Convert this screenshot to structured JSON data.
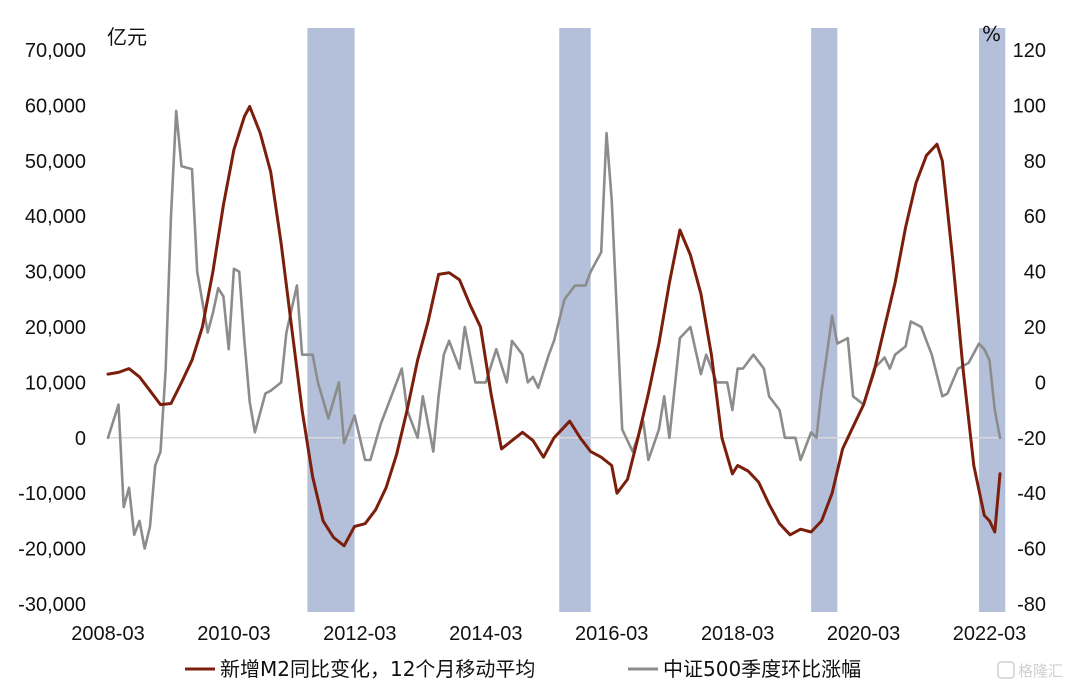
{
  "chart_data": {
    "type": "line",
    "left_unit": "亿元",
    "right_unit": "%",
    "y_left": {
      "min": -30000,
      "max": 70000,
      "ticks": [
        -30000,
        -20000,
        -10000,
        0,
        10000,
        20000,
        30000,
        40000,
        50000,
        60000,
        70000
      ],
      "tick_labels": [
        "-30,000",
        "-20,000",
        "-10,000",
        "0",
        "10,000",
        "20,000",
        "30,000",
        "40,000",
        "50,000",
        "60,000",
        "70,000"
      ]
    },
    "y_right": {
      "min": -80,
      "max": 120,
      "ticks": [
        -80,
        -60,
        -40,
        -20,
        0,
        20,
        40,
        60,
        80,
        100,
        120
      ],
      "tick_labels": [
        "-80",
        "-60",
        "-40",
        "-20",
        "0",
        "20",
        "40",
        "60",
        "80",
        "100",
        "120"
      ]
    },
    "x_range": [
      "2008-03",
      "2022-05"
    ],
    "x_tick_labels": [
      "2008-03",
      "2010-03",
      "2012-03",
      "2014-03",
      "2016-03",
      "2018-03",
      "2020-03",
      "2022-03"
    ],
    "shaded_periods": [
      [
        "2011-05",
        "2012-02"
      ],
      [
        "2015-05",
        "2015-11"
      ],
      [
        "2019-05",
        "2019-10"
      ],
      [
        "2022-01",
        "2022-06"
      ]
    ],
    "legend_position": "bottom",
    "series": [
      {
        "name": "新增M2同比变化，12个月移动平均",
        "axis": "left",
        "color": "#7b1f0c",
        "points": [
          [
            "2008-03",
            11500
          ],
          [
            "2008-05",
            11800
          ],
          [
            "2008-07",
            12500
          ],
          [
            "2008-09",
            11000
          ],
          [
            "2008-11",
            8500
          ],
          [
            "2009-01",
            6000
          ],
          [
            "2009-03",
            6200
          ],
          [
            "2009-05",
            10000
          ],
          [
            "2009-07",
            14000
          ],
          [
            "2009-09",
            20000
          ],
          [
            "2009-11",
            30000
          ],
          [
            "2010-01",
            42000
          ],
          [
            "2010-03",
            52000
          ],
          [
            "2010-05",
            58000
          ],
          [
            "2010-06",
            59800
          ],
          [
            "2010-08",
            55000
          ],
          [
            "2010-10",
            48000
          ],
          [
            "2010-12",
            35000
          ],
          [
            "2011-02",
            20000
          ],
          [
            "2011-04",
            5000
          ],
          [
            "2011-06",
            -7000
          ],
          [
            "2011-08",
            -15000
          ],
          [
            "2011-10",
            -18000
          ],
          [
            "2011-12",
            -19500
          ],
          [
            "2012-02",
            -16000
          ],
          [
            "2012-04",
            -15500
          ],
          [
            "2012-06",
            -13000
          ],
          [
            "2012-08",
            -9000
          ],
          [
            "2012-10",
            -3000
          ],
          [
            "2012-12",
            5000
          ],
          [
            "2013-02",
            14000
          ],
          [
            "2013-04",
            21000
          ],
          [
            "2013-06",
            29500
          ],
          [
            "2013-08",
            29800
          ],
          [
            "2013-10",
            28500
          ],
          [
            "2013-12",
            24000
          ],
          [
            "2014-02",
            20000
          ],
          [
            "2014-04",
            8000
          ],
          [
            "2014-06",
            -2000
          ],
          [
            "2014-08",
            -500
          ],
          [
            "2014-10",
            1000
          ],
          [
            "2014-12",
            -500
          ],
          [
            "2015-02",
            -3500
          ],
          [
            "2015-04",
            0
          ],
          [
            "2015-06",
            2000
          ],
          [
            "2015-07",
            3000
          ],
          [
            "2015-09",
            0
          ],
          [
            "2015-11",
            -2500
          ],
          [
            "2016-01",
            -3500
          ],
          [
            "2016-03",
            -5000
          ],
          [
            "2016-04",
            -10000
          ],
          [
            "2016-06",
            -7500
          ],
          [
            "2016-08",
            0
          ],
          [
            "2016-10",
            8000
          ],
          [
            "2016-12",
            17000
          ],
          [
            "2017-02",
            28000
          ],
          [
            "2017-04",
            37500
          ],
          [
            "2017-06",
            33000
          ],
          [
            "2017-08",
            26000
          ],
          [
            "2017-10",
            15000
          ],
          [
            "2017-12",
            0
          ],
          [
            "2018-02",
            -6500
          ],
          [
            "2018-03",
            -5000
          ],
          [
            "2018-05",
            -6000
          ],
          [
            "2018-07",
            -8000
          ],
          [
            "2018-09",
            -12000
          ],
          [
            "2018-11",
            -15500
          ],
          [
            "2019-01",
            -17500
          ],
          [
            "2019-03",
            -16500
          ],
          [
            "2019-05",
            -17000
          ],
          [
            "2019-07",
            -15000
          ],
          [
            "2019-09",
            -10000
          ],
          [
            "2019-11",
            -2000
          ],
          [
            "2020-01",
            2000
          ],
          [
            "2020-03",
            6000
          ],
          [
            "2020-05",
            12000
          ],
          [
            "2020-07",
            20000
          ],
          [
            "2020-09",
            28000
          ],
          [
            "2020-11",
            38000
          ],
          [
            "2021-01",
            46000
          ],
          [
            "2021-03",
            51000
          ],
          [
            "2021-05",
            53000
          ],
          [
            "2021-06",
            50000
          ],
          [
            "2021-08",
            32000
          ],
          [
            "2021-10",
            12000
          ],
          [
            "2021-12",
            -5000
          ],
          [
            "2022-02",
            -14000
          ],
          [
            "2022-03",
            -15000
          ],
          [
            "2022-04",
            -17000
          ],
          [
            "2022-05",
            -6500
          ]
        ]
      },
      {
        "name": "中证500季度环比涨幅",
        "axis": "right",
        "color": "#8c8c8c",
        "points": [
          [
            "2008-03",
            -20
          ],
          [
            "2008-05",
            -8
          ],
          [
            "2008-06",
            -45
          ],
          [
            "2008-07",
            -38
          ],
          [
            "2008-08",
            -55
          ],
          [
            "2008-09",
            -50
          ],
          [
            "2008-10",
            -60
          ],
          [
            "2008-11",
            -52
          ],
          [
            "2008-12",
            -30
          ],
          [
            "2009-01",
            -25
          ],
          [
            "2009-02",
            5
          ],
          [
            "2009-03",
            60
          ],
          [
            "2009-04",
            98
          ],
          [
            "2009-05",
            78
          ],
          [
            "2009-07",
            77
          ],
          [
            "2009-08",
            40
          ],
          [
            "2009-10",
            18
          ],
          [
            "2009-11",
            25
          ],
          [
            "2009-12",
            34
          ],
          [
            "2010-01",
            31
          ],
          [
            "2010-02",
            12
          ],
          [
            "2010-03",
            41
          ],
          [
            "2010-04",
            40
          ],
          [
            "2010-05",
            15
          ],
          [
            "2010-06",
            -7
          ],
          [
            "2010-07",
            -18
          ],
          [
            "2010-09",
            -4
          ],
          [
            "2010-10",
            -3
          ],
          [
            "2010-12",
            0
          ],
          [
            "2011-01",
            18
          ],
          [
            "2011-03",
            35
          ],
          [
            "2011-04",
            10
          ],
          [
            "2011-06",
            10
          ],
          [
            "2011-07",
            0
          ],
          [
            "2011-09",
            -13
          ],
          [
            "2011-11",
            0
          ],
          [
            "2011-12",
            -22
          ],
          [
            "2012-02",
            -12
          ],
          [
            "2012-04",
            -28
          ],
          [
            "2012-05",
            -28
          ],
          [
            "2012-07",
            -15
          ],
          [
            "2012-09",
            -5
          ],
          [
            "2012-11",
            5
          ],
          [
            "2012-12",
            -10
          ],
          [
            "2013-02",
            -20
          ],
          [
            "2013-03",
            -5
          ],
          [
            "2013-05",
            -25
          ],
          [
            "2013-06",
            -5
          ],
          [
            "2013-07",
            10
          ],
          [
            "2013-08",
            15
          ],
          [
            "2013-10",
            5
          ],
          [
            "2013-11",
            20
          ],
          [
            "2014-01",
            0
          ],
          [
            "2014-03",
            0
          ],
          [
            "2014-05",
            12
          ],
          [
            "2014-07",
            0
          ],
          [
            "2014-08",
            15
          ],
          [
            "2014-10",
            10
          ],
          [
            "2014-11",
            0
          ],
          [
            "2014-12",
            2
          ],
          [
            "2015-01",
            -2
          ],
          [
            "2015-03",
            10
          ],
          [
            "2015-04",
            15
          ],
          [
            "2015-06",
            30
          ],
          [
            "2015-08",
            35
          ],
          [
            "2015-10",
            35
          ],
          [
            "2015-11",
            40
          ],
          [
            "2016-01",
            47
          ],
          [
            "2016-02",
            90
          ],
          [
            "2016-03",
            66
          ],
          [
            "2016-05",
            -17
          ],
          [
            "2016-07",
            -25
          ],
          [
            "2016-09",
            -14
          ],
          [
            "2016-10",
            -28
          ],
          [
            "2016-12",
            -17
          ],
          [
            "2017-01",
            -5
          ],
          [
            "2017-02",
            -20
          ],
          [
            "2017-04",
            16
          ],
          [
            "2017-06",
            20
          ],
          [
            "2017-08",
            3
          ],
          [
            "2017-09",
            10
          ],
          [
            "2017-11",
            0
          ],
          [
            "2018-01",
            0
          ],
          [
            "2018-02",
            -10
          ],
          [
            "2018-03",
            5
          ],
          [
            "2018-04",
            5
          ],
          [
            "2018-06",
            10
          ],
          [
            "2018-08",
            5
          ],
          [
            "2018-09",
            -5
          ],
          [
            "2018-11",
            -10
          ],
          [
            "2018-12",
            -20
          ],
          [
            "2019-02",
            -20
          ],
          [
            "2019-03",
            -28
          ],
          [
            "2019-05",
            -18
          ],
          [
            "2019-06",
            -20
          ],
          [
            "2019-07",
            -3
          ],
          [
            "2019-08",
            10
          ],
          [
            "2019-09",
            24
          ],
          [
            "2019-10",
            14
          ],
          [
            "2019-12",
            16
          ],
          [
            "2020-01",
            -5
          ],
          [
            "2020-03",
            -8
          ],
          [
            "2020-05",
            5
          ],
          [
            "2020-07",
            9
          ],
          [
            "2020-08",
            5
          ],
          [
            "2020-09",
            10
          ],
          [
            "2020-11",
            13
          ],
          [
            "2020-12",
            22
          ],
          [
            "2021-02",
            20
          ],
          [
            "2021-03",
            15
          ],
          [
            "2021-04",
            10
          ],
          [
            "2021-06",
            -5
          ],
          [
            "2021-07",
            -4
          ],
          [
            "2021-09",
            5
          ],
          [
            "2021-11",
            7
          ],
          [
            "2022-01",
            14
          ],
          [
            "2022-02",
            12
          ],
          [
            "2022-03",
            8
          ],
          [
            "2022-04",
            -10
          ],
          [
            "2022-05",
            -20
          ]
        ]
      }
    ]
  },
  "watermark": "格隆汇"
}
